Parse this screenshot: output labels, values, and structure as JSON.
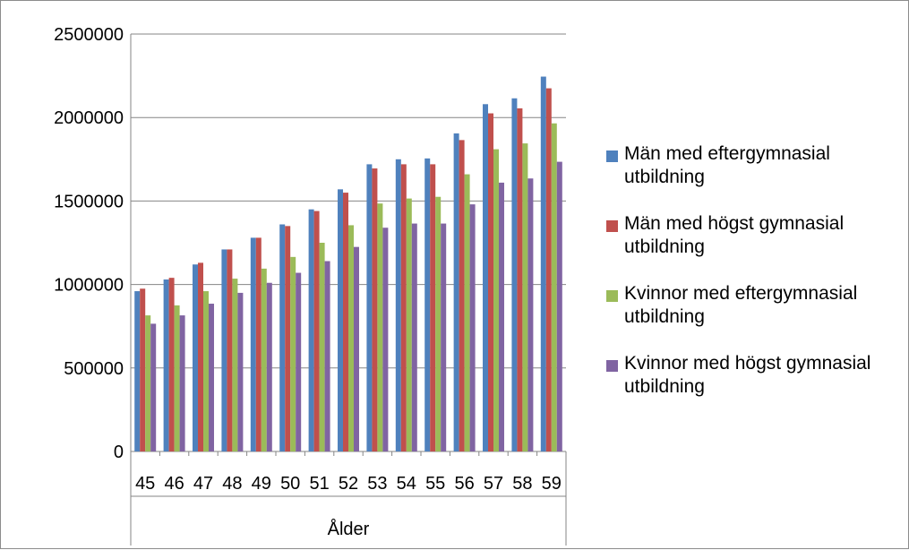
{
  "chart_data": {
    "type": "bar",
    "title": "",
    "xlabel": "Ålder",
    "ylabel": "",
    "ylim": [
      0,
      2500000
    ],
    "yticks": [
      0,
      500000,
      1000000,
      1500000,
      2000000,
      2500000
    ],
    "yticks_text": [
      "0",
      "500000",
      "1000000",
      "1500000",
      "2000000",
      "2500000"
    ],
    "grid": true,
    "legend_position": "right",
    "categories": [
      "45",
      "46",
      "47",
      "48",
      "49",
      "50",
      "51",
      "52",
      "53",
      "54",
      "55",
      "56",
      "57",
      "58",
      "59"
    ],
    "series": [
      {
        "name": "Män med eftergymnasial utbildning",
        "color": "#4f81bd",
        "values": [
          960000,
          1030000,
          1120000,
          1210000,
          1280000,
          1360000,
          1450000,
          1570000,
          1720000,
          1750000,
          1755000,
          1905000,
          2080000,
          2115000,
          2245000
        ]
      },
      {
        "name": "Män med högst gymnasial utbildning",
        "color": "#c0504d",
        "values": [
          975000,
          1040000,
          1130000,
          1210000,
          1280000,
          1350000,
          1440000,
          1550000,
          1695000,
          1720000,
          1720000,
          1865000,
          2025000,
          2055000,
          2175000
        ]
      },
      {
        "name": "Kvinnor med eftergymnasial utbildning",
        "color": "#9bbb59",
        "values": [
          815000,
          875000,
          960000,
          1035000,
          1095000,
          1165000,
          1250000,
          1355000,
          1485000,
          1515000,
          1525000,
          1660000,
          1810000,
          1845000,
          1965000
        ]
      },
      {
        "name": "Kvinnor med högst gymnasial utbildning",
        "color": "#8064a2",
        "values": [
          765000,
          815000,
          885000,
          950000,
          1010000,
          1070000,
          1140000,
          1225000,
          1340000,
          1365000,
          1365000,
          1480000,
          1610000,
          1635000,
          1735000
        ]
      }
    ]
  }
}
